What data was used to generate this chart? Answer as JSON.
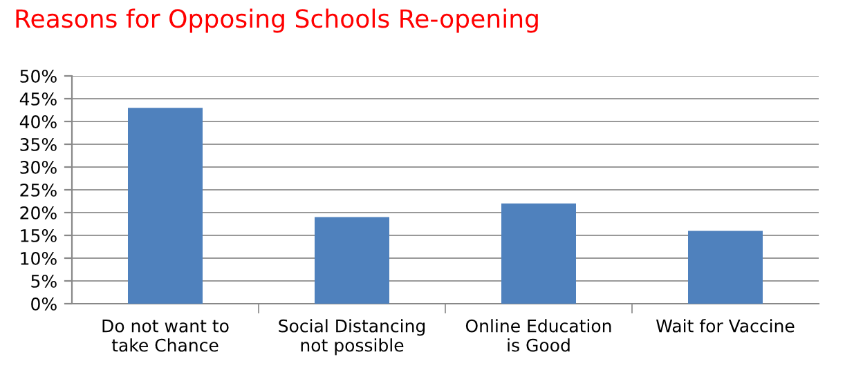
{
  "chart_data": {
    "type": "bar",
    "title": "Reasons for Opposing Schools Re-opening",
    "categories": [
      "Do not want to\ntake Chance",
      "Social Distancing\nnot possible",
      "Online Education\nis Good",
      "Wait for Vaccine"
    ],
    "values": [
      43,
      19,
      22,
      16
    ],
    "color": "#4f81bd",
    "ylim": [
      0,
      50
    ],
    "yticks": [
      {
        "value": 0,
        "label": "0%"
      },
      {
        "value": 5,
        "label": "5%"
      },
      {
        "value": 10,
        "label": "10%"
      },
      {
        "value": 15,
        "label": "15%"
      },
      {
        "value": 20,
        "label": "20%"
      },
      {
        "value": 25,
        "label": "25%"
      },
      {
        "value": 30,
        "label": "30%"
      },
      {
        "value": 35,
        "label": "35%"
      },
      {
        "value": 40,
        "label": "40%"
      },
      {
        "value": 45,
        "label": "45%"
      },
      {
        "value": 50,
        "label": "50%"
      }
    ],
    "grid": "y",
    "legend": false
  }
}
